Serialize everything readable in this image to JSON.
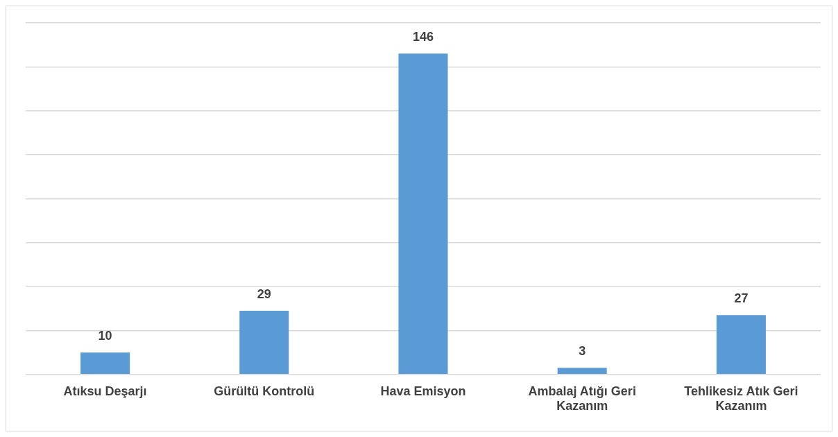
{
  "chart_data": {
    "type": "bar",
    "categories": [
      "Atıksu Deşarjı",
      "Gürültü Kontrolü",
      "Hava Emisyon",
      "Ambalaj Atığı Geri Kazanım",
      "Tehlikesiz Atık Geri Kazanım"
    ],
    "values": [
      10,
      29,
      146,
      3,
      27
    ],
    "color": "#5b9bd5",
    "data_labels": true,
    "ylim": [
      0,
      160
    ],
    "yticks": [
      {
        "value": 0,
        "label": null
      },
      {
        "value": 20,
        "label": null
      },
      {
        "value": 40,
        "label": null
      },
      {
        "value": 60,
        "label": null
      },
      {
        "value": 80,
        "label": null
      },
      {
        "value": 100,
        "label": null
      },
      {
        "value": 120,
        "label": null
      },
      {
        "value": 140,
        "label": null
      },
      {
        "value": 160,
        "label": null
      }
    ],
    "grid": "y",
    "legend": false,
    "tick_labels": "x"
  }
}
